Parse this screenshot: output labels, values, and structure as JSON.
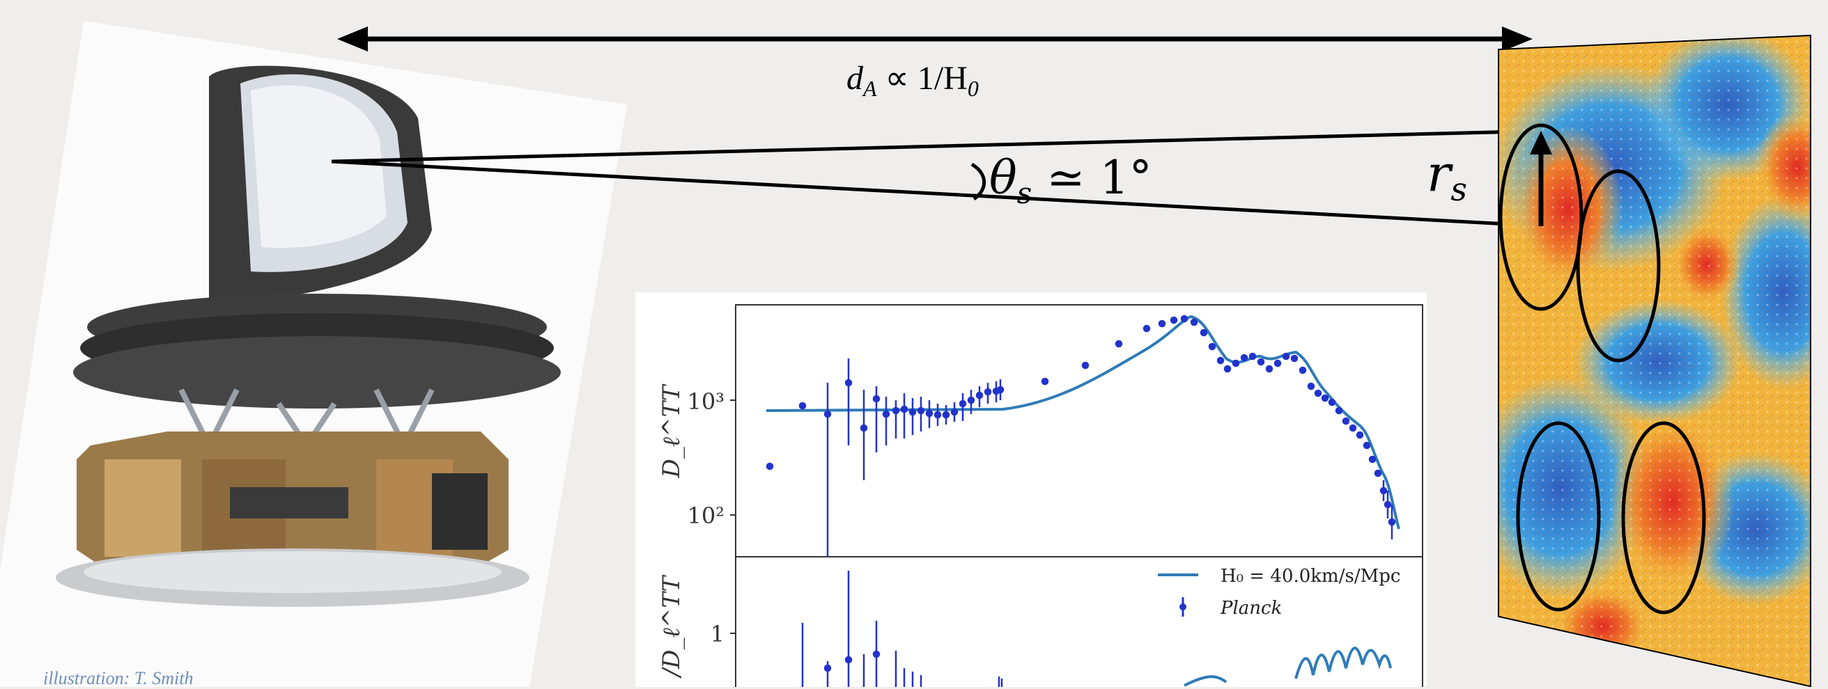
{
  "labels": {
    "distance": "d",
    "distance_sub": "A",
    "distance_rel": " ∝ 1/H",
    "distance_rel_sub": "0",
    "angle": "θ",
    "angle_sub": "s",
    "angle_rel": " ≃ 1°",
    "radius": "r",
    "radius_sub": "s"
  },
  "credit": "illustration: T. Smith",
  "chart_data": {
    "type": "scatter",
    "panels": [
      {
        "ylabel": "D_ℓ^TT",
        "yscale": "log",
        "yticks": [
          "10³",
          "10²"
        ],
        "series": [
          {
            "name": "H₀ = 40.0km/s/Mpc",
            "kind": "line",
            "color": "#2f7bb8"
          },
          {
            "name": "Planck",
            "kind": "errorbar-points",
            "color": "#2233cc"
          }
        ]
      },
      {
        "ylabel": "/D_ℓ^TT",
        "yticks": [
          "1"
        ]
      }
    ],
    "legend": [
      "H₀ = 40.0km/s/Mpc",
      "Planck"
    ],
    "legend_placement": "lower-right of top panel"
  },
  "colors": {
    "background": "#efeeec",
    "arrow": "#000000",
    "line_model": "#2f7bb8",
    "planck_points": "#2233cc",
    "cmb_hot": "#e8402a",
    "cmb_cold": "#2b74c8"
  }
}
